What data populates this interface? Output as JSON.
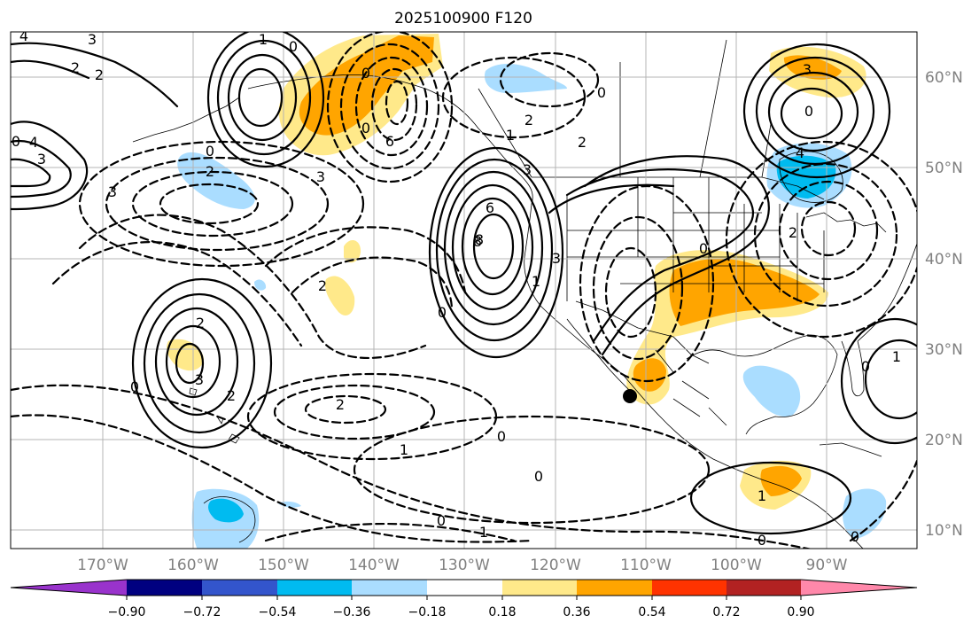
{
  "title": "2025100900 F120",
  "longitude_labels": [
    "170°W",
    "160°W",
    "150°W",
    "140°W",
    "130°W",
    "120°W",
    "110°W",
    "100°W",
    "90°W"
  ],
  "latitude_labels": [
    "60°N",
    "50°N",
    "40°N",
    "30°N",
    "20°N",
    "10°N"
  ],
  "colorbar": {
    "colors": [
      "#9933cc",
      "#000080",
      "#3355cc",
      "#00bbf0",
      "#aaddff",
      "#ffffff",
      "#ffe98a",
      "#ffa500",
      "#ff3300",
      "#b22222",
      "#ff88aa"
    ],
    "tick_labels": [
      "−0.90",
      "−0.72",
      "−0.54",
      "−0.36",
      "−0.18",
      "0.18",
      "0.36",
      "0.54",
      "0.72",
      "0.90"
    ]
  },
  "contour_labels": [
    "4",
    "3",
    "2",
    "2",
    "1",
    "0",
    "0",
    "3",
    "0",
    "3",
    "4",
    "6",
    "3",
    "8",
    "0",
    "2",
    "2",
    "1",
    "2",
    "0",
    "3",
    "0",
    "3",
    "0",
    "2",
    "6",
    "8",
    "4",
    "2",
    "2",
    "0",
    "3",
    "2",
    "0",
    "0",
    "2",
    "1",
    "0",
    "0",
    "1",
    "3",
    "0",
    "1",
    "1",
    "0",
    "1",
    "0",
    "0"
  ],
  "point_marker": {
    "lat": 24.5,
    "lon": -111.6
  }
}
